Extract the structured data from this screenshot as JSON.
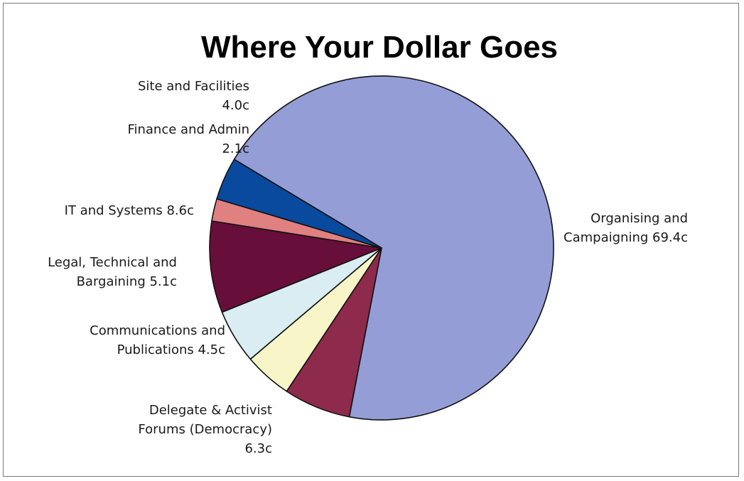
{
  "chart_data": {
    "type": "pie",
    "title": "Where Your Dollar Goes",
    "unit": "c",
    "slices": [
      {
        "label": "Organising and Campaigning",
        "value": 69.4,
        "value_text": "69.4c",
        "label_lines": [
          "Organising and",
          "Campaigning 69.4c"
        ],
        "color": "#949DD6"
      },
      {
        "label": "Delegate & Activist Forums (Democracy)",
        "value": 6.3,
        "value_text": "6.3c",
        "label_lines": [
          "Delegate & Activist",
          "Forums (Democracy)",
          "6.3c"
        ],
        "color": "#8E2A4C"
      },
      {
        "label": "Communications and Publications",
        "value": 4.5,
        "value_text": "4.5c",
        "label_lines": [
          "Communications and",
          "Publications 4.5c"
        ],
        "color": "#F7F5C8"
      },
      {
        "label": "Legal, Technical and Bargaining",
        "value": 5.1,
        "value_text": "5.1c",
        "label_lines": [
          "Legal, Technical and",
          "Bargaining 5.1c"
        ],
        "color": "#D9EDF2"
      },
      {
        "label": "IT and Systems",
        "value": 8.6,
        "value_text": "8.6c",
        "label_lines": [
          "IT and Systems 8.6c"
        ],
        "color": "#680E3A"
      },
      {
        "label": "Finance and Admin",
        "value": 2.1,
        "value_text": "2.1c",
        "label_lines": [
          "Finance and Admin",
          "2.1c"
        ],
        "color": "#E08080"
      },
      {
        "label": "Site and Facilities",
        "value": 4.0,
        "value_text": "4.0c",
        "label_lines": [
          "Site and Facilities",
          "4.0c"
        ],
        "color": "#0A4A9E"
      }
    ]
  }
}
